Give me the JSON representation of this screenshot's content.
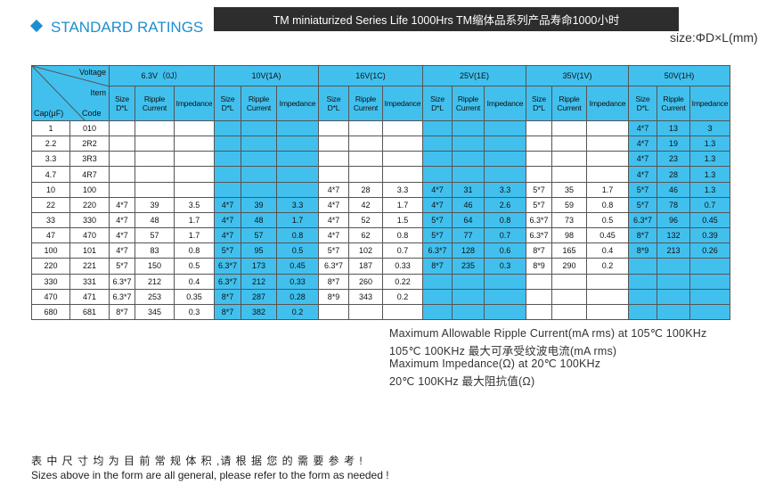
{
  "header": {
    "title": "STANDARD RATINGS",
    "banner": "TM miniaturized Series Life 1000Hrs  TM缩体品系列产品寿命1000小时",
    "size_note": "size:ΦD×L(mm)"
  },
  "table": {
    "corner": {
      "voltage": "Voltage",
      "item": "Item",
      "cap": "Cap(μF)",
      "code": "Code"
    },
    "voltages": [
      "6.3V（0J）",
      "10V(1A)",
      "16V(1C)",
      "25V(1E)",
      "35V(1V)",
      "50V(1H)"
    ],
    "sub_headers": [
      "Size D*L",
      "Ripple Current",
      "Impedance"
    ],
    "rows": [
      {
        "cap": "1",
        "code": "010",
        "cells": [
          null,
          null,
          null,
          null,
          null,
          [
            "4*7",
            "13",
            "3"
          ]
        ]
      },
      {
        "cap": "2.2",
        "code": "2R2",
        "cells": [
          null,
          null,
          null,
          null,
          null,
          [
            "4*7",
            "19",
            "1.3"
          ]
        ]
      },
      {
        "cap": "3.3",
        "code": "3R3",
        "cells": [
          null,
          null,
          null,
          null,
          null,
          [
            "4*7",
            "23",
            "1.3"
          ]
        ]
      },
      {
        "cap": "4.7",
        "code": "4R7",
        "cells": [
          null,
          null,
          null,
          null,
          null,
          [
            "4*7",
            "28",
            "1.3"
          ]
        ]
      },
      {
        "cap": "10",
        "code": "100",
        "cells": [
          null,
          null,
          [
            "4*7",
            "28",
            "3.3"
          ],
          [
            "4*7",
            "31",
            "3.3"
          ],
          [
            "5*7",
            "35",
            "1.7"
          ],
          [
            "5*7",
            "46",
            "1.3"
          ]
        ]
      },
      {
        "cap": "22",
        "code": "220",
        "cells": [
          [
            "4*7",
            "39",
            "3.5"
          ],
          [
            "4*7",
            "39",
            "3.3"
          ],
          [
            "4*7",
            "42",
            "1.7"
          ],
          [
            "4*7",
            "46",
            "2.6"
          ],
          [
            "5*7",
            "59",
            "0.8"
          ],
          [
            "5*7",
            "78",
            "0.7"
          ]
        ]
      },
      {
        "cap": "33",
        "code": "330",
        "cells": [
          [
            "4*7",
            "48",
            "1.7"
          ],
          [
            "4*7",
            "48",
            "1.7"
          ],
          [
            "4*7",
            "52",
            "1.5"
          ],
          [
            "5*7",
            "64",
            "0.8"
          ],
          [
            "6.3*7",
            "73",
            "0.5"
          ],
          [
            "6.3*7",
            "96",
            "0.45"
          ]
        ]
      },
      {
        "cap": "47",
        "code": "470",
        "cells": [
          [
            "4*7",
            "57",
            "1.7"
          ],
          [
            "4*7",
            "57",
            "0.8"
          ],
          [
            "4*7",
            "62",
            "0.8"
          ],
          [
            "5*7",
            "77",
            "0.7"
          ],
          [
            "6.3*7",
            "98",
            "0.45"
          ],
          [
            "8*7",
            "132",
            "0.39"
          ]
        ]
      },
      {
        "cap": "100",
        "code": "101",
        "cells": [
          [
            "4*7",
            "83",
            "0.8"
          ],
          [
            "5*7",
            "95",
            "0.5"
          ],
          [
            "5*7",
            "102",
            "0.7"
          ],
          [
            "6.3*7",
            "128",
            "0.6"
          ],
          [
            "8*7",
            "165",
            "0.4"
          ],
          [
            "8*9",
            "213",
            "0.26"
          ]
        ]
      },
      {
        "cap": "220",
        "code": "221",
        "cells": [
          [
            "5*7",
            "150",
            "0.5"
          ],
          [
            "6.3*7",
            "173",
            "0.45"
          ],
          [
            "6.3*7",
            "187",
            "0.33"
          ],
          [
            "8*7",
            "235",
            "0.3"
          ],
          [
            "8*9",
            "290",
            "0.2"
          ],
          null
        ]
      },
      {
        "cap": "330",
        "code": "331",
        "cells": [
          [
            "6.3*7",
            "212",
            "0.4"
          ],
          [
            "6.3*7",
            "212",
            "0.33"
          ],
          [
            "8*7",
            "260",
            "0.22"
          ],
          null,
          null,
          null
        ]
      },
      {
        "cap": "470",
        "code": "471",
        "cells": [
          [
            "6.3*7",
            "253",
            "0.35"
          ],
          [
            "8*7",
            "287",
            "0.28"
          ],
          [
            "8*9",
            "343",
            "0.2"
          ],
          null,
          null,
          null
        ]
      },
      {
        "cap": "680",
        "code": "681",
        "cells": [
          [
            "8*7",
            "345",
            "0.3"
          ],
          [
            "8*7",
            "382",
            "0.2"
          ],
          null,
          null,
          null,
          null
        ]
      }
    ]
  },
  "notes": [
    "Maximum Allowable Ripple Current(mA rms) at 105℃ 100KHz",
    "105℃ 100KHz 最大可承受纹波电流(mA rms)",
    "Maximum Impedance(Ω) at 20℃ 100KHz",
    "20℃ 100KHz 最大阻抗值(Ω)"
  ],
  "footer": [
    "表 中 尺 寸 均 为 目 前 常 规 体 积 ,请 根 据 您 的 需 要 参 考 !",
    "Sizes above in the form are all general, please refer to the form as needed !"
  ]
}
